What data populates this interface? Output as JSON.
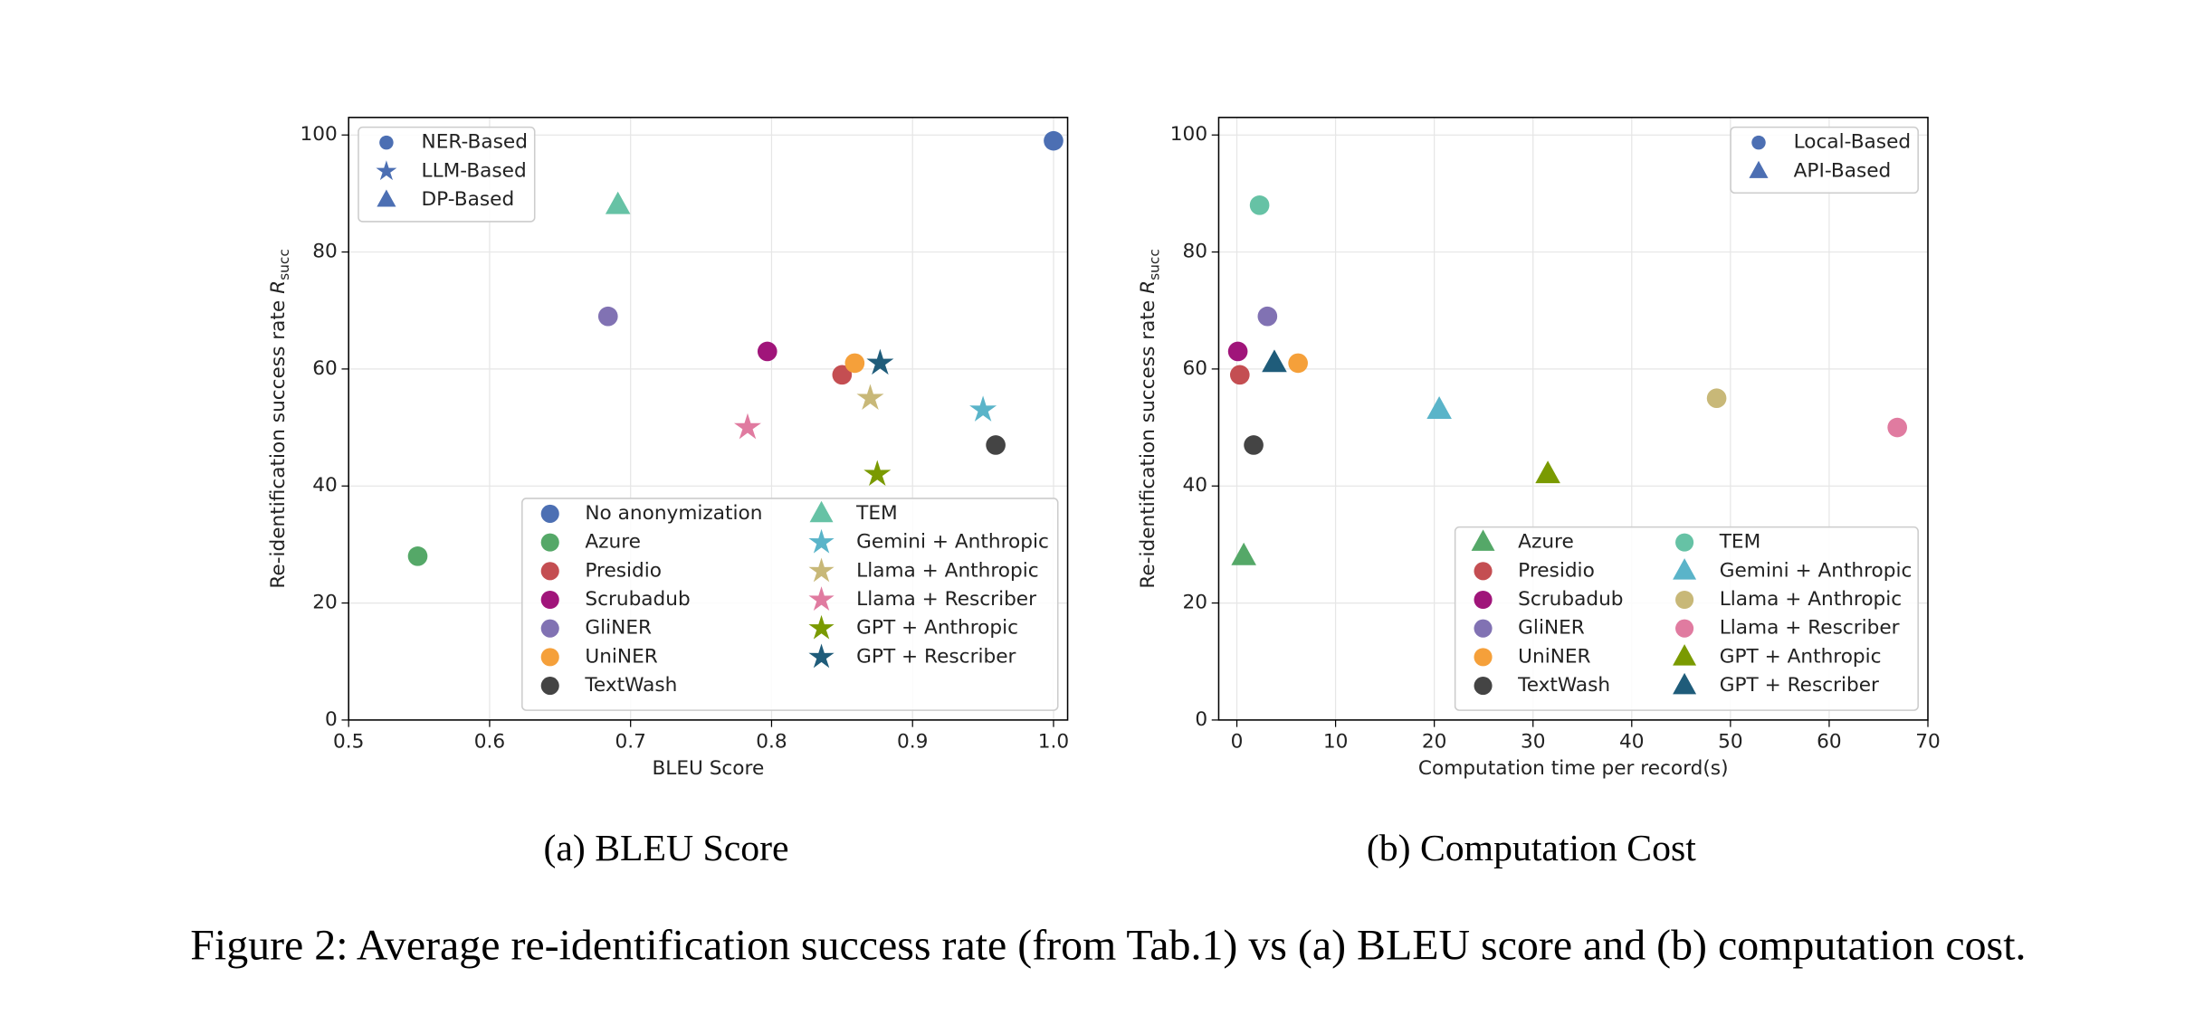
{
  "chart_data": [
    {
      "type": "scatter",
      "caption": "(a) BLEU Score",
      "xlabel": "BLEU Score",
      "ylabel": "Re-identification success rate",
      "ylabel_symbol": "R",
      "ylabel_subscript": "succ",
      "xlim": [
        0.5,
        1.01
      ],
      "ylim": [
        0,
        103
      ],
      "xticks": [
        0.5,
        0.6,
        0.7,
        0.8,
        0.9,
        {
          "value": 1,
          "label": "1.0"
        }
      ],
      "yticks": [
        0,
        20,
        40,
        60,
        80,
        100
      ],
      "grid": true,
      "legend_loc": "lower right",
      "marker_legend_loc": "upper left",
      "marker_legend_color": "#4c6fb3",
      "marker_legend": [
        {
          "name": "NER-Based",
          "marker": "circle"
        },
        {
          "name": "LLM-Based",
          "marker": "star"
        },
        {
          "name": "DP-Based",
          "marker": "triangle"
        }
      ],
      "series": [
        {
          "name": "No anonymization",
          "color": "#4c6fb3",
          "marker": "circle",
          "x": [
            1.0
          ],
          "values": [
            99
          ]
        },
        {
          "name": "Azure",
          "color": "#55a868",
          "marker": "circle",
          "x": [
            0.549
          ],
          "values": [
            28
          ]
        },
        {
          "name": "Presidio",
          "color": "#c44e52",
          "marker": "circle",
          "x": [
            0.85
          ],
          "values": [
            59
          ]
        },
        {
          "name": "Scrubadub",
          "color": "#a0157a",
          "marker": "circle",
          "x": [
            0.797
          ],
          "values": [
            63
          ]
        },
        {
          "name": "GliNER",
          "color": "#8172b3",
          "marker": "circle",
          "x": [
            0.684
          ],
          "values": [
            69
          ]
        },
        {
          "name": "UniNER",
          "color": "#f5a03a",
          "marker": "circle",
          "x": [
            0.859
          ],
          "values": [
            61
          ]
        },
        {
          "name": "TextWash",
          "color": "#444444",
          "marker": "circle",
          "x": [
            0.959
          ],
          "values": [
            47
          ]
        },
        {
          "name": "TEM",
          "color": "#66c2a5",
          "marker": "triangle",
          "x": [
            0.691
          ],
          "values": [
            88
          ]
        },
        {
          "name": "Gemini + Anthropic",
          "color": "#5ab4c9",
          "marker": "star",
          "x": [
            0.95
          ],
          "values": [
            53
          ]
        },
        {
          "name": "Llama + Anthropic",
          "color": "#c8b878",
          "marker": "star",
          "x": [
            0.87
          ],
          "values": [
            55
          ]
        },
        {
          "name": "Llama + Rescriber",
          "color": "#e07ba0",
          "marker": "star",
          "x": [
            0.783
          ],
          "values": [
            50
          ]
        },
        {
          "name": "GPT + Anthropic",
          "color": "#7a9a01",
          "marker": "star",
          "x": [
            0.875
          ],
          "values": [
            42
          ]
        },
        {
          "name": "GPT + Rescriber",
          "color": "#1f5c7a",
          "marker": "star",
          "x": [
            0.877
          ],
          "values": [
            61
          ]
        }
      ]
    },
    {
      "type": "scatter",
      "caption": "(b) Computation Cost",
      "xlabel": "Computation time per record(s)",
      "ylabel": "Re-identification success rate",
      "ylabel_symbol": "R",
      "ylabel_subscript": "succ",
      "xlim": [
        -1.84,
        70
      ],
      "ylim": [
        0,
        103
      ],
      "xticks": [
        0,
        10,
        20,
        30,
        40,
        50,
        60,
        70
      ],
      "yticks": [
        0,
        20,
        40,
        60,
        80,
        100
      ],
      "grid": true,
      "legend_loc": "lower right",
      "marker_legend_loc": "upper right",
      "marker_legend_color": "#4c6fb3",
      "marker_legend": [
        {
          "name": "Local-Based",
          "marker": "circle"
        },
        {
          "name": "API-Based",
          "marker": "triangle"
        }
      ],
      "series": [
        {
          "name": "Azure",
          "color": "#55a868",
          "marker": "triangle",
          "x": [
            0.7
          ],
          "values": [
            28
          ]
        },
        {
          "name": "Presidio",
          "color": "#c44e52",
          "marker": "circle",
          "x": [
            0.3
          ],
          "values": [
            59
          ]
        },
        {
          "name": "Scrubadub",
          "color": "#a0157a",
          "marker": "circle",
          "x": [
            0.1
          ],
          "values": [
            63
          ]
        },
        {
          "name": "GliNER",
          "color": "#8172b3",
          "marker": "circle",
          "x": [
            3.1
          ],
          "values": [
            69
          ]
        },
        {
          "name": "UniNER",
          "color": "#f5a03a",
          "marker": "circle",
          "x": [
            6.2
          ],
          "values": [
            61
          ]
        },
        {
          "name": "TextWash",
          "color": "#444444",
          "marker": "circle",
          "x": [
            1.7
          ],
          "values": [
            47
          ]
        },
        {
          "name": "TEM",
          "color": "#66c2a5",
          "marker": "circle",
          "x": [
            2.3
          ],
          "values": [
            88
          ]
        },
        {
          "name": "Gemini + Anthropic",
          "color": "#5ab4c9",
          "marker": "triangle",
          "x": [
            20.5
          ],
          "values": [
            53
          ]
        },
        {
          "name": "Llama + Anthropic",
          "color": "#c8b878",
          "marker": "circle",
          "x": [
            48.6
          ],
          "values": [
            55
          ]
        },
        {
          "name": "Llama + Rescriber",
          "color": "#e07ba0",
          "marker": "circle",
          "x": [
            66.9
          ],
          "values": [
            50
          ]
        },
        {
          "name": "GPT + Anthropic",
          "color": "#7a9a01",
          "marker": "triangle",
          "x": [
            31.5
          ],
          "values": [
            42
          ]
        },
        {
          "name": "GPT + Rescriber",
          "color": "#1f5c7a",
          "marker": "triangle",
          "x": [
            3.8
          ],
          "values": [
            61
          ]
        }
      ]
    }
  ],
  "figure_caption": "Figure 2: Average re-identification success rate (from Tab.1) vs (a) BLEU score and (b) computation cost."
}
